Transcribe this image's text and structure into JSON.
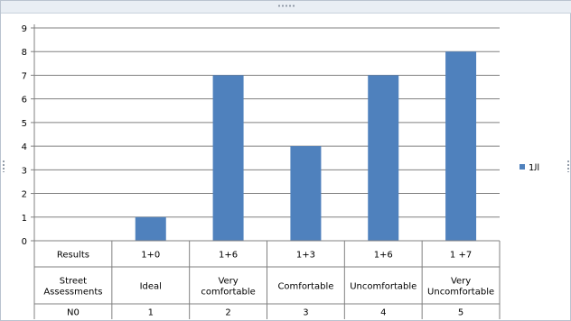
{
  "chart_data": {
    "type": "bar",
    "title": "",
    "ylim": [
      0,
      9
    ],
    "yticks": [
      "0",
      "1",
      "2",
      "3",
      "4",
      "5",
      "6",
      "7",
      "8",
      "9"
    ],
    "grid": true,
    "legend_position": "right",
    "colors": {
      "bar": "#4f81bd",
      "grid": "#808080",
      "axis": "#808080"
    },
    "series": [
      {
        "name": "1ﺍﻟ",
        "values": [
          null,
          1,
          7,
          4,
          7,
          8
        ]
      }
    ],
    "table": {
      "rows": [
        [
          "Results",
          "1+0",
          "1+6",
          "1+3",
          "1+6",
          "1 +7"
        ],
        [
          "Street Assessments",
          "Ideal",
          "Very comfortable",
          "Comfortable",
          "Uncomfortable",
          "Very Uncomfortable"
        ],
        [
          "N0",
          "1",
          "2",
          "3",
          "4",
          "5"
        ]
      ]
    }
  }
}
